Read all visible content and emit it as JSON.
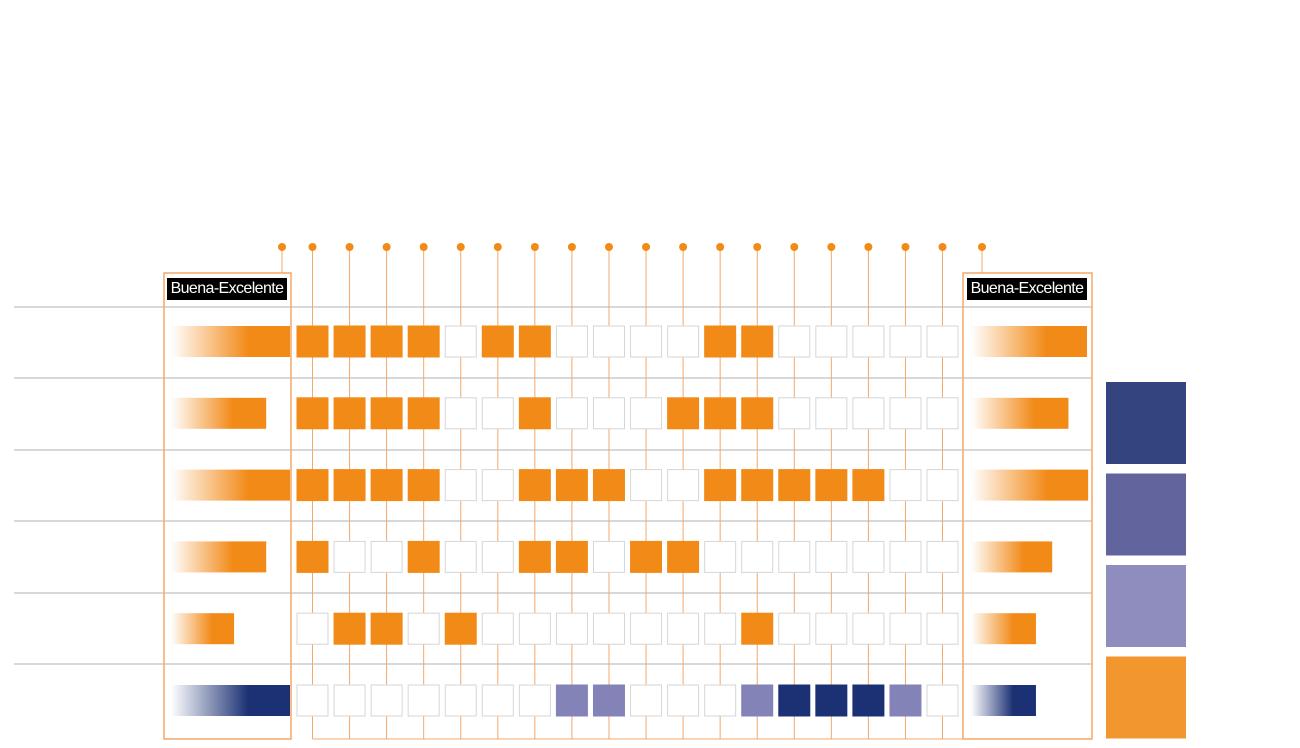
{
  "chart_data": {
    "type": "heatmap",
    "title": "",
    "xlabel": "",
    "ylabel": "",
    "column_count": 18,
    "left_panel_label": "Buena-Excelente",
    "right_panel_label": "Buena-Excelente",
    "rows": [
      {
        "left_bar": 1.0,
        "right_bar": 1.0,
        "bar_color": "orange",
        "cells": [
          3,
          3,
          3,
          3,
          0,
          3,
          3,
          0,
          0,
          0,
          0,
          3,
          3,
          0,
          0,
          0,
          0,
          0
        ]
      },
      {
        "left_bar": 0.8,
        "right_bar": 0.84,
        "bar_color": "orange",
        "cells": [
          3,
          3,
          3,
          3,
          0,
          0,
          3,
          0,
          0,
          0,
          3,
          3,
          3,
          0,
          0,
          0,
          0,
          0
        ]
      },
      {
        "left_bar": 1.0,
        "right_bar": 1.01,
        "bar_color": "orange",
        "cells": [
          3,
          3,
          3,
          3,
          0,
          0,
          3,
          3,
          3,
          0,
          0,
          3,
          3,
          3,
          3,
          3,
          0,
          0
        ]
      },
      {
        "left_bar": 0.8,
        "right_bar": 0.7,
        "bar_color": "orange",
        "cells": [
          3,
          0,
          0,
          3,
          0,
          0,
          3,
          3,
          0,
          3,
          3,
          0,
          0,
          0,
          0,
          0,
          0,
          0
        ]
      },
      {
        "left_bar": 0.53,
        "right_bar": 0.56,
        "bar_color": "orange",
        "cells": [
          0,
          3,
          3,
          0,
          3,
          0,
          0,
          0,
          0,
          0,
          0,
          0,
          3,
          0,
          0,
          0,
          0,
          0
        ]
      },
      {
        "left_bar": 1.0,
        "right_bar": 0.56,
        "bar_color": "navy",
        "cells": [
          0,
          0,
          0,
          0,
          0,
          0,
          0,
          4,
          4,
          0,
          0,
          0,
          4,
          5,
          5,
          5,
          4,
          0
        ]
      }
    ],
    "levels": [
      {
        "level": 0,
        "color": "#ffffff"
      },
      {
        "level": 3,
        "color": "#f28a18"
      },
      {
        "level": 4,
        "color": "#8483b8"
      },
      {
        "level": 5,
        "color": "#1b3174"
      }
    ],
    "legend": {
      "placement": "right",
      "colors": [
        "#33447f",
        "#62649e",
        "#8e8dbd",
        "#f2972d"
      ]
    }
  },
  "colors": {
    "orange": "#f28a18",
    "orange_line": "#f4a86a",
    "navy": "#1b3174",
    "grid": "#b0b0b0",
    "cell_border": "#d6d6d6"
  }
}
